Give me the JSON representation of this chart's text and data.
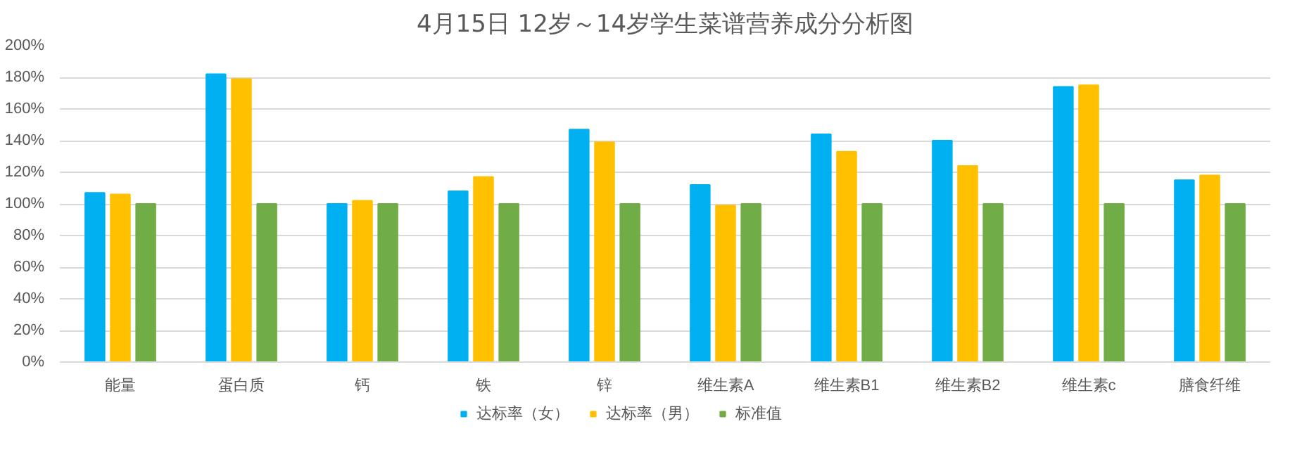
{
  "chart_data": {
    "type": "bar",
    "title": "4月15日 12岁～14岁学生菜谱营养成分分析图",
    "categories": [
      "能量",
      "蛋白质",
      "钙",
      "铁",
      "锌",
      "维生素A",
      "维生素B1",
      "维生素B2",
      "维生素c",
      "膳食纤维"
    ],
    "series": [
      {
        "name": "达标率（女）",
        "color": "#00b0f0",
        "values": [
          107,
          182,
          100,
          108,
          147,
          112,
          144,
          140,
          174,
          115
        ]
      },
      {
        "name": "达标率（男）",
        "color": "#ffc000",
        "values": [
          106,
          179,
          102,
          117,
          139,
          99,
          133,
          124,
          175,
          118
        ]
      },
      {
        "name": "标准值",
        "color": "#70ad47",
        "values": [
          100,
          100,
          100,
          100,
          100,
          100,
          100,
          100,
          100,
          100
        ]
      }
    ],
    "ylim": [
      0,
      200
    ],
    "yticks": [
      {
        "value": 0,
        "label": "0%"
      },
      {
        "value": 20,
        "label": "20%"
      },
      {
        "value": 40,
        "label": "40%"
      },
      {
        "value": 60,
        "label": "60%"
      },
      {
        "value": 80,
        "label": "80%"
      },
      {
        "value": 100,
        "label": "100%"
      },
      {
        "value": 120,
        "label": "120%"
      },
      {
        "value": 140,
        "label": "140%"
      },
      {
        "value": 160,
        "label": "160%"
      },
      {
        "value": 180,
        "label": "180%"
      },
      {
        "value": 200,
        "label": "200%"
      }
    ],
    "grid": "y",
    "legend": "bottom"
  }
}
